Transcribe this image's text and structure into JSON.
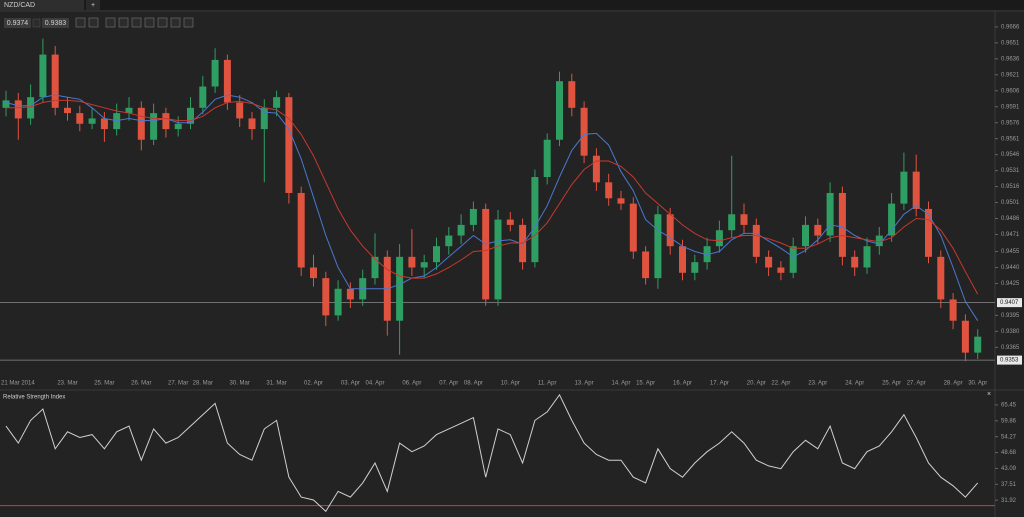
{
  "ui": {
    "tab": "NZD/CAD",
    "new_tab": "+",
    "bid": "0.9374",
    "ask": "0.9383",
    "close": "×"
  },
  "chart_data": [
    {
      "type": "candlestick",
      "up_color": "#2e9e62",
      "down_color": "#e0533f",
      "ylim": [
        0.9339,
        0.968
      ],
      "yticks": [
        0.9666,
        0.9651,
        0.9636,
        0.9621,
        0.9606,
        0.9591,
        0.9576,
        0.9561,
        0.9546,
        0.9531,
        0.9516,
        0.9501,
        0.9486,
        0.9471,
        0.9455,
        {
          "value": 0.944,
          "label": "0.9440"
        },
        0.9425,
        0.9395,
        {
          "value": 0.938,
          "label": "0.9380"
        },
        0.9365
      ],
      "hlines": [
        0.9407,
        0.9353
      ],
      "categories": [
        "21 Mar 2014",
        null,
        null,
        null,
        null,
        "23. Mar",
        null,
        null,
        "25. Mar",
        null,
        null,
        "26. Mar",
        null,
        null,
        "27. Mar",
        null,
        "28. Mar",
        null,
        null,
        "30. Mar",
        null,
        null,
        "31. Mar",
        null,
        null,
        "02. Apr",
        null,
        null,
        "03. Apr",
        null,
        "04. Apr",
        null,
        null,
        "06. Apr",
        null,
        null,
        "07. Apr",
        null,
        "08. Apr",
        null,
        null,
        "10. Apr",
        null,
        null,
        "11. Apr",
        null,
        null,
        "13. Apr",
        null,
        null,
        "14. Apr",
        null,
        "15. Apr",
        null,
        null,
        "16. Apr",
        null,
        null,
        "17. Apr",
        null,
        null,
        "20. Apr",
        null,
        "22. Apr",
        null,
        null,
        "23. Apr",
        null,
        null,
        "24. Apr",
        null,
        null,
        "25. Apr",
        null,
        "27. Apr",
        null,
        null,
        "28. Apr",
        null,
        "30. Apr"
      ],
      "candles": [
        [
          0.959,
          0.9606,
          0.9582,
          0.9597
        ],
        [
          0.9597,
          0.9604,
          0.956,
          0.958
        ],
        [
          0.958,
          0.9612,
          0.9574,
          0.96
        ],
        [
          0.96,
          0.9655,
          0.9595,
          0.964
        ],
        [
          0.964,
          0.9648,
          0.9583,
          0.959
        ],
        [
          0.959,
          0.96,
          0.9578,
          0.9585
        ],
        [
          0.9585,
          0.9592,
          0.9568,
          0.9575
        ],
        [
          0.9575,
          0.959,
          0.957,
          0.958
        ],
        [
          0.958,
          0.9586,
          0.9558,
          0.957
        ],
        [
          0.957,
          0.9594,
          0.9564,
          0.9585
        ],
        [
          0.9585,
          0.96,
          0.9578,
          0.959
        ],
        [
          0.959,
          0.9596,
          0.955,
          0.956
        ],
        [
          0.956,
          0.9594,
          0.9555,
          0.9585
        ],
        [
          0.9585,
          0.959,
          0.9562,
          0.957
        ],
        [
          0.957,
          0.9582,
          0.9563,
          0.9575
        ],
        [
          0.9575,
          0.96,
          0.957,
          0.959
        ],
        [
          0.959,
          0.962,
          0.9584,
          0.961
        ],
        [
          0.961,
          0.9646,
          0.9604,
          0.9635
        ],
        [
          0.9635,
          0.964,
          0.9588,
          0.9595
        ],
        [
          0.9595,
          0.9602,
          0.9572,
          0.958
        ],
        [
          0.958,
          0.9586,
          0.956,
          0.957
        ],
        [
          0.957,
          0.9598,
          0.952,
          0.959
        ],
        [
          0.959,
          0.9606,
          0.9582,
          0.96
        ],
        [
          0.96,
          0.9604,
          0.95,
          0.951
        ],
        [
          0.951,
          0.9516,
          0.9432,
          0.944
        ],
        [
          0.944,
          0.9452,
          0.9422,
          0.943
        ],
        [
          0.943,
          0.9436,
          0.9385,
          0.9395
        ],
        [
          0.9395,
          0.9428,
          0.939,
          0.942
        ],
        [
          0.942,
          0.9426,
          0.9402,
          0.941
        ],
        [
          0.941,
          0.9438,
          0.9404,
          0.943
        ],
        [
          0.943,
          0.9472,
          0.9424,
          0.945
        ],
        [
          0.945,
          0.9456,
          0.9376,
          0.939
        ],
        [
          0.939,
          0.9462,
          0.9358,
          0.945
        ],
        [
          0.945,
          0.9476,
          0.9432,
          0.944
        ],
        [
          0.944,
          0.9452,
          0.943,
          0.9445
        ],
        [
          0.9445,
          0.9468,
          0.9438,
          0.946
        ],
        [
          0.946,
          0.9478,
          0.9452,
          0.947
        ],
        [
          0.947,
          0.949,
          0.9462,
          0.948
        ],
        [
          0.948,
          0.9502,
          0.9474,
          0.9495
        ],
        [
          0.9495,
          0.95,
          0.9404,
          0.941
        ],
        [
          0.941,
          0.9494,
          0.9404,
          0.9485
        ],
        [
          0.9485,
          0.9492,
          0.9474,
          0.948
        ],
        [
          0.948,
          0.9486,
          0.9438,
          0.9445
        ],
        [
          0.9445,
          0.9532,
          0.944,
          0.9525
        ],
        [
          0.9525,
          0.9566,
          0.9518,
          0.956
        ],
        [
          0.956,
          0.9624,
          0.9554,
          0.9615
        ],
        [
          0.9615,
          0.9622,
          0.9582,
          0.959
        ],
        [
          0.959,
          0.9596,
          0.9538,
          0.9545
        ],
        [
          0.9545,
          0.9552,
          0.9512,
          0.952
        ],
        [
          0.952,
          0.9528,
          0.9498,
          0.9505
        ],
        [
          0.9505,
          0.9512,
          0.9494,
          0.95
        ],
        [
          0.95,
          0.9506,
          0.9448,
          0.9455
        ],
        [
          0.9455,
          0.946,
          0.9424,
          0.943
        ],
        [
          0.943,
          0.9498,
          0.942,
          0.949
        ],
        [
          0.949,
          0.9496,
          0.9452,
          0.946
        ],
        [
          0.946,
          0.9466,
          0.9428,
          0.9435
        ],
        [
          0.9435,
          0.9452,
          0.9428,
          0.9445
        ],
        [
          0.9445,
          0.9468,
          0.9438,
          0.946
        ],
        [
          0.946,
          0.9484,
          0.9454,
          0.9475
        ],
        [
          0.9475,
          0.9545,
          0.9468,
          0.949
        ],
        [
          0.949,
          0.95,
          0.9472,
          0.948
        ],
        [
          0.948,
          0.9486,
          0.9444,
          0.945
        ],
        [
          0.945,
          0.9456,
          0.9432,
          0.944
        ],
        [
          0.944,
          0.9446,
          0.9428,
          0.9435
        ],
        [
          0.9435,
          0.9468,
          0.943,
          0.946
        ],
        [
          0.946,
          0.9488,
          0.9454,
          0.948
        ],
        [
          0.948,
          0.9486,
          0.9462,
          0.947
        ],
        [
          0.947,
          0.952,
          0.9464,
          0.951
        ],
        [
          0.951,
          0.9516,
          0.9442,
          0.945
        ],
        [
          0.945,
          0.9456,
          0.9432,
          0.944
        ],
        [
          0.944,
          0.9468,
          0.9434,
          0.946
        ],
        [
          0.946,
          0.9478,
          0.9452,
          0.947
        ],
        [
          0.947,
          0.951,
          0.9464,
          0.95
        ],
        [
          0.95,
          0.9548,
          0.9494,
          0.953
        ],
        [
          0.953,
          0.9546,
          0.9488,
          0.9495
        ],
        [
          0.9495,
          0.9502,
          0.9444,
          0.945
        ],
        [
          0.945,
          0.9456,
          0.9402,
          0.941
        ],
        [
          0.941,
          0.9416,
          0.9382,
          0.939
        ],
        [
          0.939,
          0.9396,
          0.9352,
          0.936
        ],
        [
          0.936,
          0.9382,
          0.9354,
          0.9375
        ]
      ],
      "series": [
        {
          "color": "#4a78d0",
          "values": [
            0.9595,
            0.9592,
            0.9592,
            0.96,
            0.9602,
            0.96,
            0.9598,
            0.959,
            0.958,
            0.9578,
            0.958,
            0.9578,
            0.9578,
            0.958,
            0.9576,
            0.9576,
            0.9586,
            0.9598,
            0.9602,
            0.96,
            0.9595,
            0.9586,
            0.9585,
            0.957,
            0.9542,
            0.9506,
            0.947,
            0.944,
            0.942,
            0.942,
            0.942,
            0.942,
            0.9424,
            0.943,
            0.9432,
            0.944,
            0.945,
            0.946,
            0.947,
            0.9462,
            0.9465,
            0.9466,
            0.9462,
            0.9478,
            0.9498,
            0.9525,
            0.955,
            0.9565,
            0.9566,
            0.9555,
            0.953,
            0.9512,
            0.9485,
            0.9475,
            0.9468,
            0.946,
            0.9455,
            0.9452,
            0.9455,
            0.9466,
            0.9472,
            0.9472,
            0.9465,
            0.9458,
            0.945,
            0.9456,
            0.9466,
            0.948,
            0.9478,
            0.947,
            0.9465,
            0.9462,
            0.9475,
            0.949,
            0.9498,
            0.949,
            0.947,
            0.944,
            0.9408,
            0.939
          ]
        },
        {
          "color": "#c8392e",
          "values": [
            0.959,
            0.959,
            0.9591,
            0.9595,
            0.9597,
            0.9597,
            0.9596,
            0.9593,
            0.959,
            0.9587,
            0.9585,
            0.9582,
            0.958,
            0.958,
            0.9578,
            0.9578,
            0.9582,
            0.959,
            0.9595,
            0.9596,
            0.9594,
            0.959,
            0.9588,
            0.958,
            0.9565,
            0.9545,
            0.952,
            0.9495,
            0.9475,
            0.946,
            0.9448,
            0.9438,
            0.9432,
            0.943,
            0.943,
            0.9434,
            0.944,
            0.9447,
            0.9455,
            0.9456,
            0.946,
            0.9463,
            0.9463,
            0.947,
            0.9482,
            0.95,
            0.9518,
            0.9532,
            0.954,
            0.954,
            0.9535,
            0.9525,
            0.951,
            0.95,
            0.949,
            0.948,
            0.9472,
            0.9466,
            0.9465,
            0.9468,
            0.947,
            0.947,
            0.9467,
            0.9463,
            0.9458,
            0.9458,
            0.9462,
            0.9468,
            0.947,
            0.9468,
            0.9466,
            0.9464,
            0.9468,
            0.9478,
            0.9486,
            0.9485,
            0.9475,
            0.9458,
            0.9436,
            0.9415
          ]
        }
      ]
    },
    {
      "type": "line",
      "title": "Relative Strength Index",
      "color": "#d0d0d0",
      "level": 30,
      "level_color": "#d9363e",
      "ylim": [
        26,
        70
      ],
      "yticks": [
        65.45,
        59.86,
        54.27,
        48.68,
        43.09,
        37.51,
        31.92
      ],
      "values": [
        58,
        52,
        60,
        64,
        50,
        56,
        54,
        55,
        50,
        56,
        58,
        46,
        57,
        52,
        54,
        58,
        62,
        66,
        52,
        48,
        46,
        57,
        60,
        40,
        33,
        32,
        28,
        35,
        33,
        38,
        45,
        35,
        52,
        49,
        51,
        55,
        57,
        59,
        61,
        40,
        57,
        55,
        45,
        60,
        63,
        69,
        60,
        52,
        48,
        46,
        46,
        40,
        38,
        50,
        43,
        40,
        45,
        49,
        52,
        56,
        52,
        46,
        44,
        43,
        49,
        53,
        50,
        58,
        45,
        43,
        49,
        51,
        56,
        62,
        54,
        45,
        40,
        37,
        33,
        38
      ]
    }
  ]
}
